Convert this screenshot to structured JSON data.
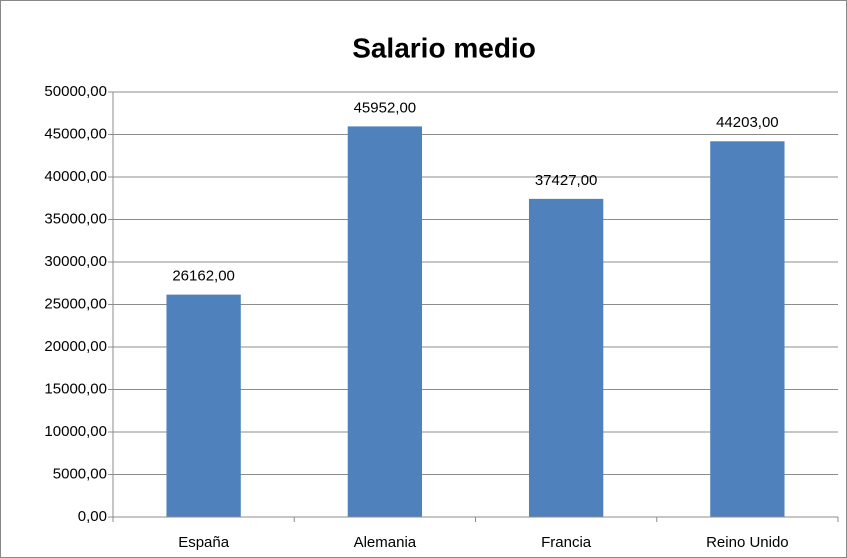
{
  "chart_data": {
    "type": "bar",
    "title": "Salario medio",
    "categories": [
      "España",
      "Alemania",
      "Francia",
      "Reino Unido"
    ],
    "values": [
      26162,
      45952,
      37427,
      44203
    ],
    "value_labels": [
      "26162,00",
      "45952,00",
      "37427,00",
      "44203,00"
    ],
    "color": "#4f81bd",
    "ylim": [
      0,
      50000
    ],
    "yticks": [
      {
        "value": 0,
        "label": "0,00"
      },
      {
        "value": 5000,
        "label": "5000,00"
      },
      {
        "value": 10000,
        "label": "10000,00"
      },
      {
        "value": 15000,
        "label": "15000,00"
      },
      {
        "value": 20000,
        "label": "20000,00"
      },
      {
        "value": 25000,
        "label": "25000,00"
      },
      {
        "value": 30000,
        "label": "30000,00"
      },
      {
        "value": 35000,
        "label": "35000,00"
      },
      {
        "value": 40000,
        "label": "40000,00"
      },
      {
        "value": 45000,
        "label": "45000,00"
      },
      {
        "value": 50000,
        "label": "50000,00"
      }
    ],
    "grid": true
  }
}
